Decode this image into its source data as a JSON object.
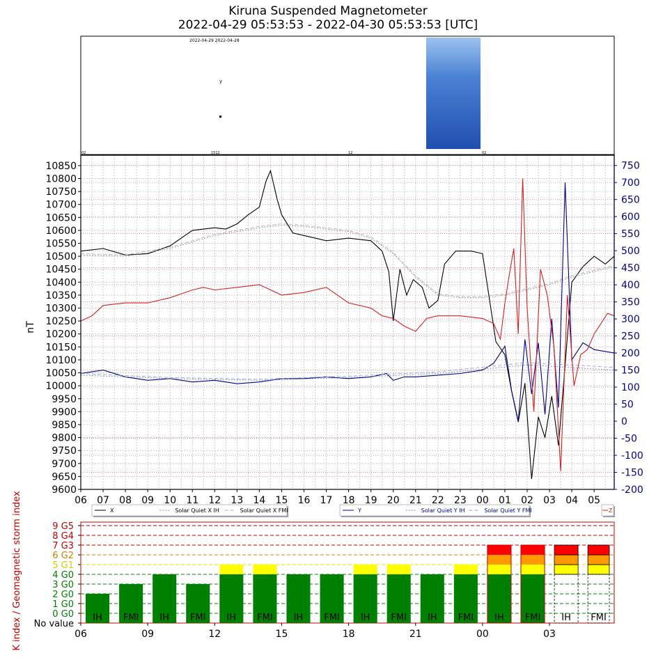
{
  "header": {
    "title": "Kiruna Suspended Magnetometer",
    "subtitle": "2022-04-29 05:53:53 - 2022-04-30 05:53:53 [UTC]"
  },
  "keogram": {
    "text_top": "2022-04-29 2022-04-28",
    "text_y": "y",
    "bottom_labels": [
      "02",
      "1512",
      "12",
      "02"
    ]
  },
  "colors": {
    "x_series": "#000000",
    "y_series": "#00008b",
    "z_series": "#d42020",
    "ih_bar": "#008000",
    "fmi_bar": "#008000",
    "g1": "#ffff00",
    "g2": "#ff9900",
    "g3": "#ff0000"
  },
  "chart_data": [
    {
      "type": "line",
      "ylabel": "nT",
      "left_axis_ticks": [
        "10850",
        "10800",
        "10750",
        "10700",
        "10650",
        "10600",
        "10550",
        "10500",
        "10450",
        "10400",
        "10350",
        "10300",
        "10250",
        "10200",
        "10150",
        "10100",
        "10050",
        "10000",
        "9950",
        "9900",
        "9850",
        "9800",
        "9750",
        "9700",
        "9650",
        "9600"
      ],
      "ylim_left": [
        9600,
        10890
      ],
      "right_axis_ticks": [
        "750",
        "700",
        "650",
        "600",
        "550",
        "500",
        "450",
        "400",
        "350",
        "300",
        "250",
        "200",
        "150",
        "100",
        "50",
        "0",
        "-50",
        "-100",
        "-150",
        "-200"
      ],
      "ylim_right": [
        -200,
        780
      ],
      "x_tick_labels": [
        "06",
        "07",
        "08",
        "09",
        "10",
        "11",
        "12",
        "13",
        "14",
        "15",
        "16",
        "17",
        "18",
        "19",
        "20",
        "21",
        "22",
        "23",
        "00",
        "01",
        "02",
        "03",
        "04",
        "05"
      ],
      "grid": true,
      "legend": [
        {
          "items": [
            "X",
            "Solar Quiet X IH",
            "Solar Quiet X FMI"
          ]
        },
        {
          "items": [
            "Y",
            "Solar Quiet Y IH",
            "Solar Quiet Y FMI"
          ]
        },
        {
          "items": [
            "Z"
          ]
        }
      ],
      "series": [
        {
          "name": "X",
          "axis": "left",
          "x": [
            6.0,
            7.0,
            8.0,
            9.0,
            10.0,
            10.5,
            11.0,
            12.0,
            12.5,
            13.0,
            13.5,
            14.0,
            14.3,
            14.5,
            14.8,
            15.0,
            15.5,
            16.0,
            17.0,
            18.0,
            19.0,
            19.5,
            19.8,
            20.0,
            20.3,
            20.6,
            20.9,
            21.3,
            21.6,
            22.0,
            22.3,
            22.8,
            23.5,
            24.0,
            24.3,
            24.6,
            25.0,
            25.3,
            25.6,
            25.9,
            26.2,
            26.5,
            26.8,
            27.1,
            27.4,
            27.7,
            28.0,
            28.5,
            29.0,
            29.5,
            29.9
          ],
          "y": [
            10520,
            10530,
            10505,
            10510,
            10540,
            10570,
            10600,
            10610,
            10605,
            10625,
            10660,
            10690,
            10790,
            10830,
            10720,
            10660,
            10590,
            10580,
            10560,
            10570,
            10560,
            10520,
            10440,
            10250,
            10450,
            10350,
            10410,
            10380,
            10300,
            10330,
            10470,
            10520,
            10520,
            10510,
            10340,
            10170,
            10120,
            9980,
            9860,
            10010,
            9640,
            9880,
            9800,
            9960,
            9770,
            10080,
            10400,
            10460,
            10500,
            10470,
            10500
          ]
        },
        {
          "name": "Solar Quiet X IH",
          "axis": "left",
          "x": [
            6.0,
            8.0,
            10.0,
            12.0,
            14.0,
            15.0,
            16.0,
            18.0,
            19.0,
            20.0,
            21.0,
            22.0,
            23.0,
            24.0,
            25.0,
            26.0,
            27.0,
            28.0,
            29.9
          ],
          "y": [
            10505,
            10500,
            10530,
            10580,
            10610,
            10620,
            10615,
            10595,
            10570,
            10510,
            10420,
            10350,
            10340,
            10340,
            10350,
            10370,
            10390,
            10420,
            10460
          ]
        },
        {
          "name": "Solar Quiet X FMI",
          "axis": "left",
          "x": [
            6.0,
            8.0,
            10.0,
            12.0,
            14.0,
            15.0,
            16.0,
            18.0,
            19.0,
            20.0,
            21.0,
            22.0,
            23.0,
            24.0,
            25.0,
            26.0,
            27.0,
            28.0,
            29.9
          ],
          "y": [
            10510,
            10505,
            10535,
            10585,
            10615,
            10625,
            10620,
            10600,
            10575,
            10515,
            10425,
            10355,
            10345,
            10345,
            10355,
            10375,
            10395,
            10425,
            10465
          ]
        },
        {
          "name": "Y",
          "axis": "right",
          "x": [
            6.0,
            7.0,
            8.0,
            9.0,
            10.0,
            11.0,
            12.0,
            13.0,
            14.0,
            15.0,
            16.0,
            17.0,
            18.0,
            19.0,
            19.7,
            20.0,
            20.5,
            21.0,
            22.0,
            23.0,
            24.0,
            24.5,
            25.0,
            25.3,
            25.6,
            25.9,
            26.2,
            26.5,
            26.8,
            27.1,
            27.4,
            27.7,
            28.0,
            28.5,
            29.0,
            29.9
          ],
          "y": [
            140,
            150,
            130,
            120,
            125,
            115,
            120,
            110,
            115,
            125,
            125,
            130,
            125,
            130,
            140,
            120,
            130,
            130,
            135,
            140,
            150,
            170,
            220,
            90,
            0,
            240,
            80,
            230,
            20,
            300,
            40,
            700,
            180,
            230,
            210,
            200
          ]
        },
        {
          "name": "Solar Quiet Y IH",
          "axis": "right",
          "x": [
            6.0,
            10.0,
            14.0,
            18.0,
            22.0,
            26.0,
            29.9
          ],
          "y": [
            135,
            125,
            120,
            128,
            140,
            165,
            150
          ]
        },
        {
          "name": "Solar Quiet Y FMI",
          "axis": "right",
          "x": [
            6.0,
            10.0,
            14.0,
            18.0,
            22.0,
            26.0,
            29.9
          ],
          "y": [
            140,
            128,
            123,
            132,
            145,
            172,
            158
          ]
        },
        {
          "name": "Z",
          "axis": "left",
          "x": [
            6.0,
            6.5,
            7.0,
            8.0,
            9.0,
            10.0,
            11.0,
            11.5,
            12.0,
            13.0,
            14.0,
            15.0,
            16.0,
            17.0,
            18.0,
            19.0,
            19.5,
            20.0,
            20.5,
            21.0,
            21.5,
            22.0,
            23.0,
            24.0,
            24.5,
            24.8,
            25.0,
            25.2,
            25.4,
            25.6,
            25.8,
            26.0,
            26.3,
            26.6,
            26.9,
            27.2,
            27.5,
            27.8,
            28.1,
            28.4,
            28.7,
            29.0,
            29.3,
            29.6,
            29.9
          ],
          "y": [
            10250,
            10270,
            10310,
            10320,
            10320,
            10340,
            10370,
            10380,
            10370,
            10380,
            10390,
            10350,
            10360,
            10380,
            10320,
            10300,
            10270,
            10260,
            10230,
            10210,
            10260,
            10270,
            10270,
            10260,
            10240,
            10180,
            10320,
            10430,
            10530,
            10200,
            10800,
            10300,
            9900,
            10450,
            10350,
            10150,
            9670,
            10350,
            10000,
            10120,
            10140,
            10200,
            10240,
            10280,
            10270
          ]
        }
      ]
    },
    {
      "type": "bar",
      "ylabel": "K index / Geomagnetic storm index",
      "y_tick_labels": [
        "9 G5",
        "8 G4",
        "7 G3",
        "6 G2",
        "5 G1",
        "4 G0",
        "3 G0",
        "2 G0",
        "1 G0",
        "0 G0",
        "No value"
      ],
      "ylim": [
        -1,
        9
      ],
      "x_tick_labels": [
        "06",
        "09",
        "12",
        "15",
        "18",
        "21",
        "00",
        "03"
      ],
      "bars": [
        {
          "label": "IH",
          "k": 2,
          "hour_start": 6.0,
          "hour_end": 7.5
        },
        {
          "label": "FMI",
          "k": 3,
          "hour_start": 7.5,
          "hour_end": 9.0
        },
        {
          "label": "IH",
          "k": 4,
          "hour_start": 9.0,
          "hour_end": 10.5
        },
        {
          "label": "FMI",
          "k": 3,
          "hour_start": 10.5,
          "hour_end": 12.0
        },
        {
          "label": "IH",
          "k": 5,
          "hour_start": 12.0,
          "hour_end": 13.5
        },
        {
          "label": "FMI",
          "k": 5,
          "hour_start": 13.5,
          "hour_end": 15.0
        },
        {
          "label": "IH",
          "k": 4,
          "hour_start": 15.0,
          "hour_end": 16.5
        },
        {
          "label": "FMI",
          "k": 4,
          "hour_start": 16.5,
          "hour_end": 18.0
        },
        {
          "label": "IH",
          "k": 5,
          "hour_start": 18.0,
          "hour_end": 19.5
        },
        {
          "label": "FMI",
          "k": 5,
          "hour_start": 19.5,
          "hour_end": 21.0
        },
        {
          "label": "IH",
          "k": 4,
          "hour_start": 21.0,
          "hour_end": 22.5
        },
        {
          "label": "FMI",
          "k": 5,
          "hour_start": 22.5,
          "hour_end": 24.0
        },
        {
          "label": "IH",
          "k": 7,
          "hour_start": 24.0,
          "hour_end": 25.5
        },
        {
          "label": "FMI",
          "k": 7,
          "hour_start": 25.5,
          "hour_end": 27.0
        },
        {
          "label": "IH",
          "k": 7,
          "hour_start": 27.0,
          "hour_end": 28.5,
          "estimated": true
        },
        {
          "label": "FMI",
          "k": 7,
          "hour_start": 28.5,
          "hour_end": 29.9,
          "estimated": true
        }
      ]
    }
  ]
}
